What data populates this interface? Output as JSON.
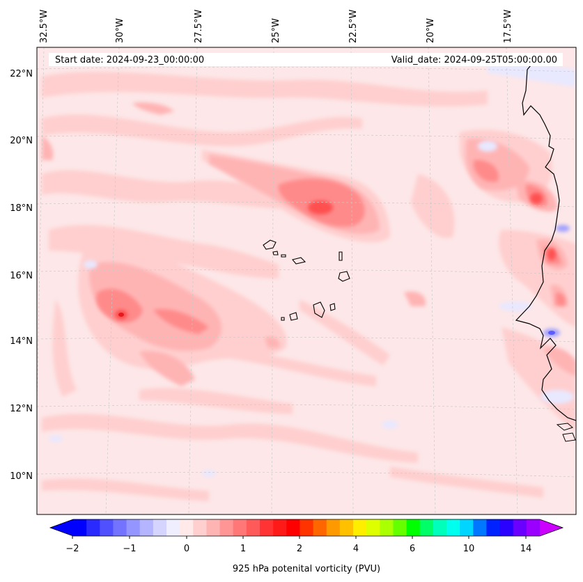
{
  "map": {
    "start_date": "Start date: 2024-09-23_00:00:00",
    "valid_date": "Valid_date: 2024-09-25T05:00:00.00",
    "lon_labels": [
      "32.5°W",
      "30°W",
      "27.5°W",
      "25°W",
      "22.5°W",
      "20°W",
      "17.5°W"
    ],
    "lat_labels": [
      "22°N",
      "20°N",
      "18°N",
      "16°N",
      "14°N",
      "12°N",
      "10°N"
    ],
    "background_color": "#fde7e8"
  },
  "colorbar": {
    "label": "925 hPa potenital vorticity (PVU)",
    "ticks": [
      "−2",
      "−1",
      "0",
      "1",
      "2",
      "4",
      "6",
      "10",
      "14"
    ],
    "colors": [
      "#0000ff",
      "#2a2aff",
      "#5050ff",
      "#7373ff",
      "#9595ff",
      "#b4b4ff",
      "#d4d4ff",
      "#eeeeff",
      "#ffe9e9",
      "#ffcfcf",
      "#ffb4b4",
      "#ff9595",
      "#ff7777",
      "#ff5a5a",
      "#ff3333",
      "#ff1a1a",
      "#ff0000",
      "#ff3300",
      "#ff6600",
      "#ff9900",
      "#ffc000",
      "#ffee00",
      "#ddff00",
      "#aaff00",
      "#66ff00",
      "#00ff00",
      "#00ff66",
      "#00ffbb",
      "#00ffee",
      "#00d5ff",
      "#0077ff",
      "#0022ff",
      "#2a00ff",
      "#6a00ff",
      "#9900ff"
    ],
    "extend_low_color": "#0000ff",
    "extend_high_color": "#cc00ff"
  }
}
